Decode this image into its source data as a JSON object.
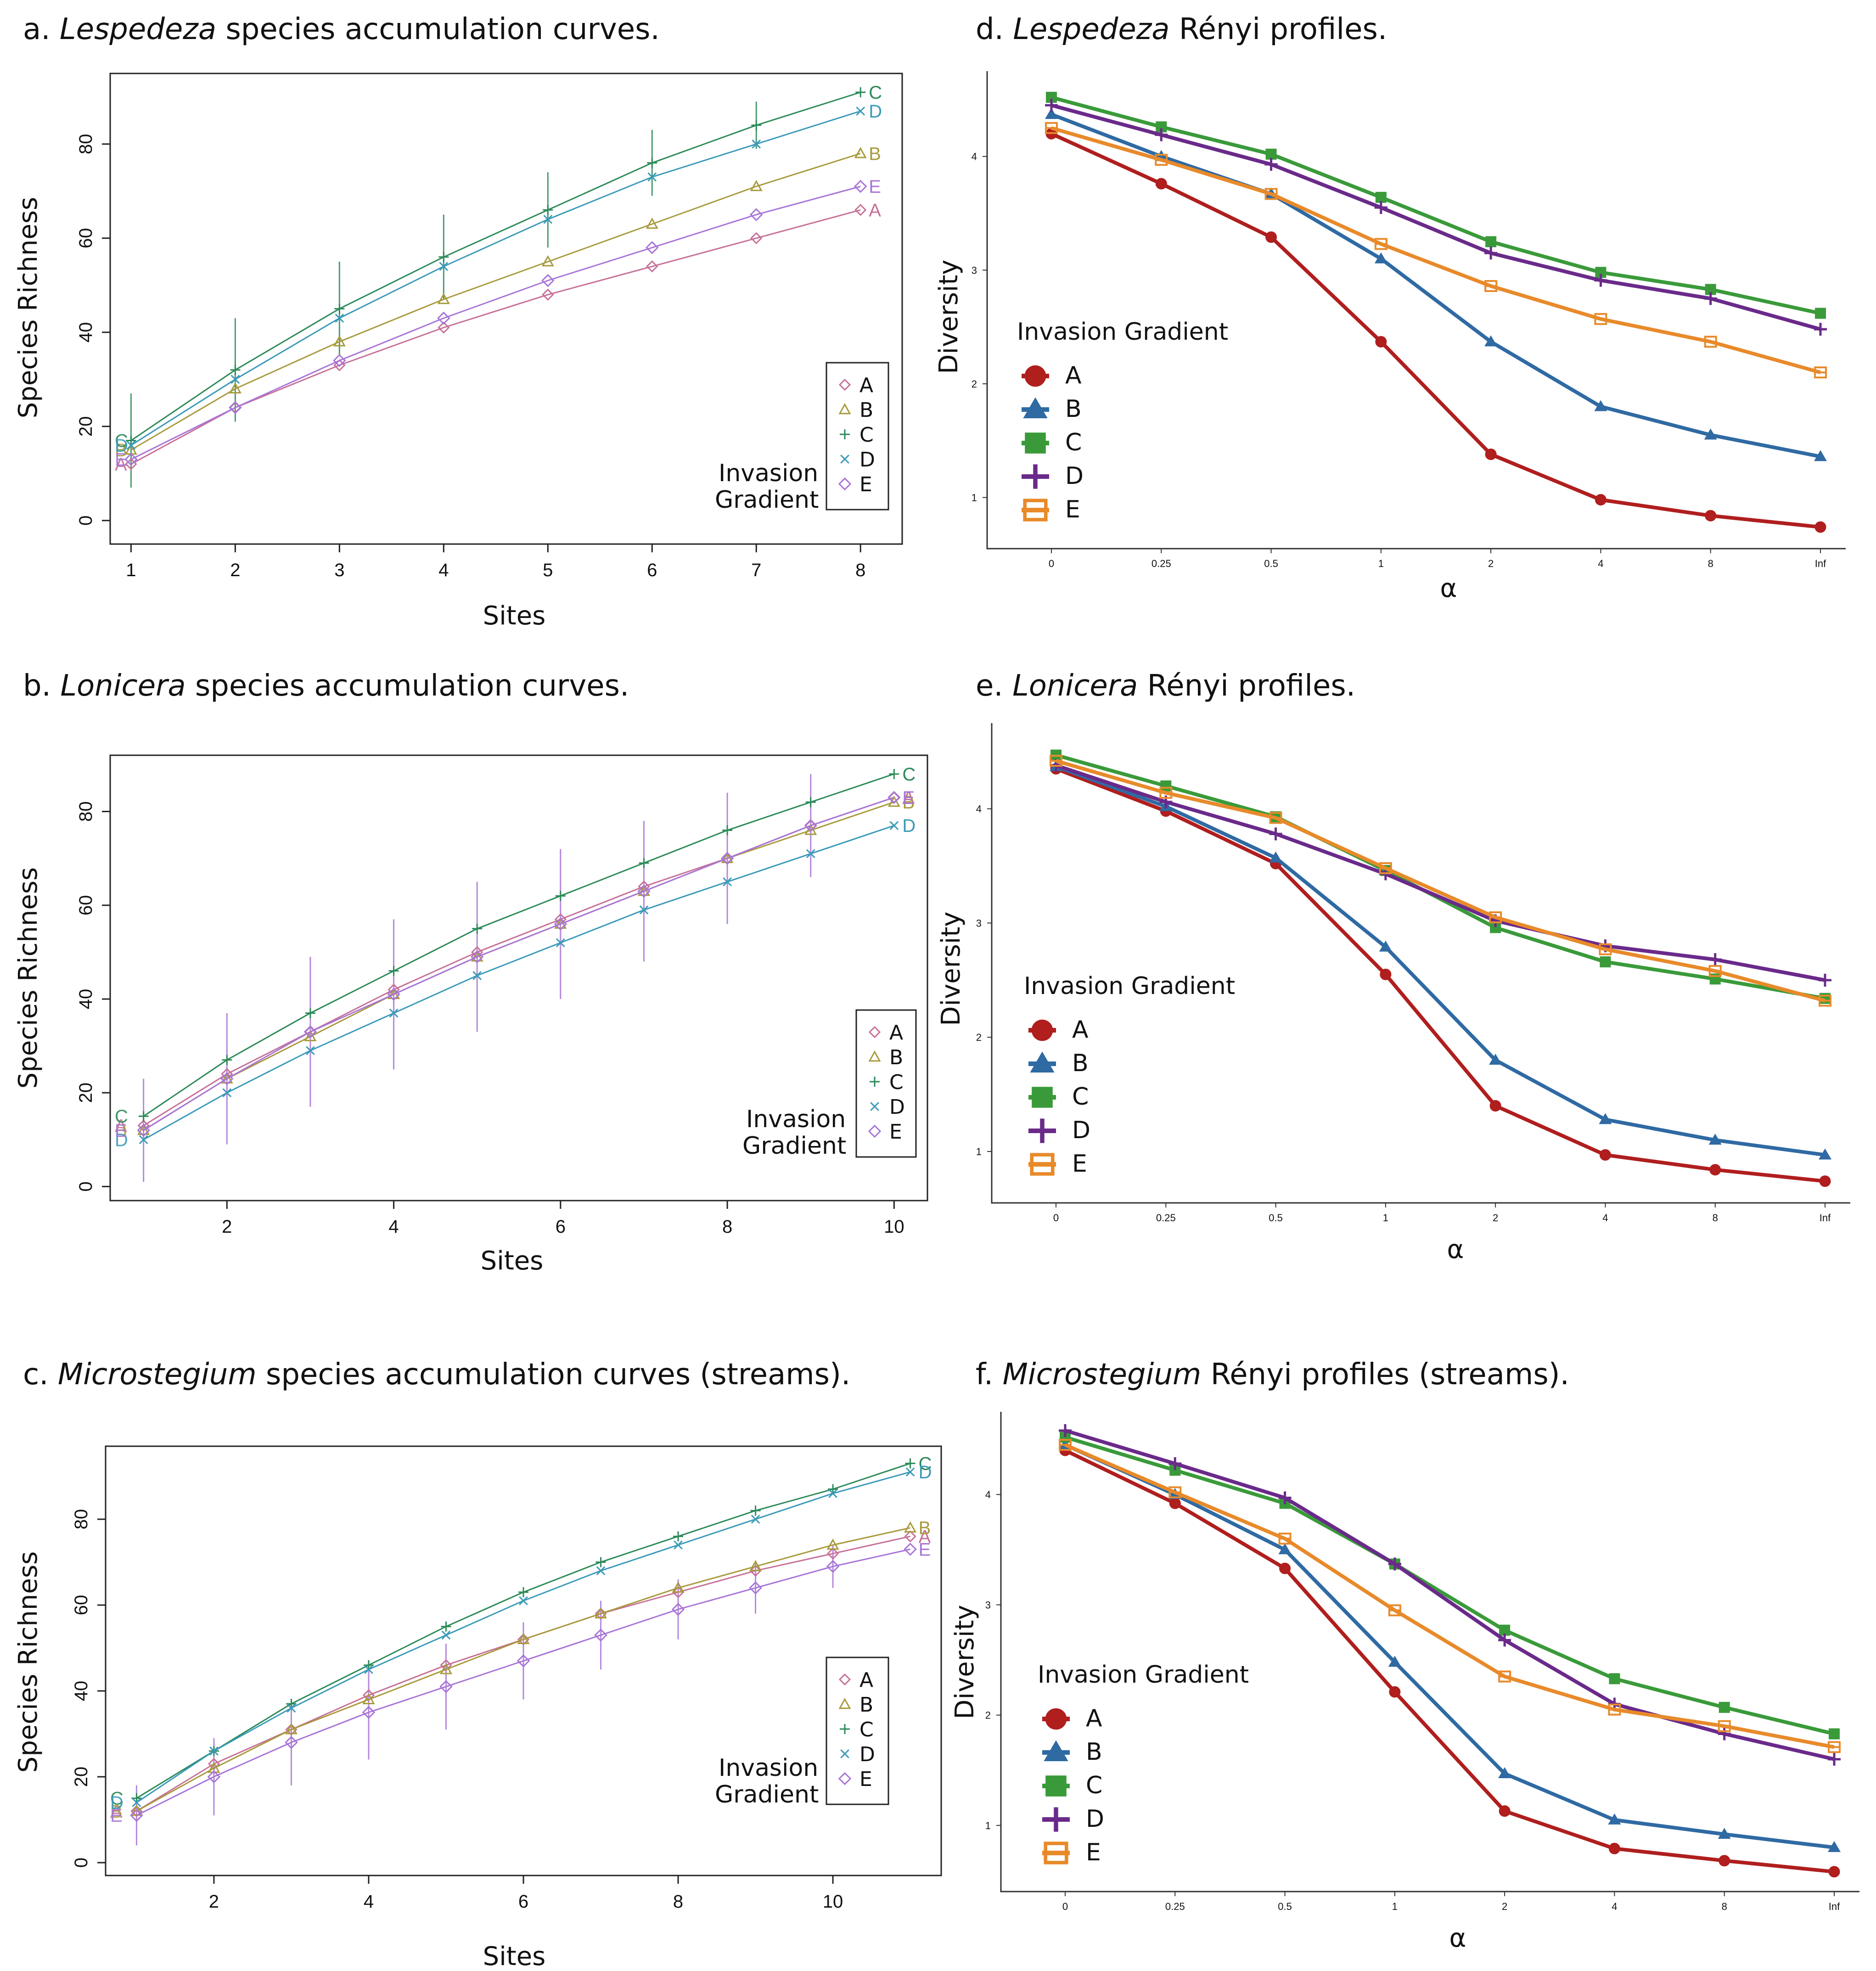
{
  "figure": {
    "colors": {
      "acc": {
        "A": "#c77098",
        "B": "#a89a3c",
        "C": "#2c8a58",
        "D": "#3a9ab8",
        "E": "#a874d8"
      },
      "renyi": {
        "A": "#b01e1e",
        "B": "#2f6aa3",
        "C": "#3a9a3a",
        "D": "#6a2a8a",
        "E": "#e88a2a"
      }
    }
  },
  "chart_data": [
    {
      "id": "a",
      "type": "line",
      "kind": "accumulation",
      "label": "a.",
      "title_italic": "Lespedeza",
      "title_rest": " species accumulation curves.",
      "xlabel": "Sites",
      "ylabel": "Species Richness",
      "x": [
        1,
        2,
        3,
        4,
        5,
        6,
        7,
        8
      ],
      "xlim": [
        0.8,
        8.4
      ],
      "ylim": [
        -5,
        95
      ],
      "xticks": [
        1,
        2,
        3,
        4,
        5,
        6,
        7,
        8
      ],
      "yticks": [
        0,
        20,
        40,
        60,
        80
      ],
      "legend_title": [
        "Invasion",
        "Gradient"
      ],
      "legend_position": "bottom-right",
      "series": [
        {
          "name": "A",
          "values": [
            12,
            24,
            33,
            41,
            48,
            54,
            60,
            66
          ]
        },
        {
          "name": "B",
          "values": [
            15,
            28,
            38,
            47,
            55,
            63,
            71,
            78
          ]
        },
        {
          "name": "C",
          "values": [
            17,
            32,
            45,
            56,
            66,
            76,
            84,
            91
          ]
        },
        {
          "name": "D",
          "values": [
            16,
            30,
            43,
            54,
            64,
            73,
            80,
            87
          ]
        },
        {
          "name": "E",
          "values": [
            13,
            24,
            34,
            43,
            51,
            58,
            65,
            71
          ]
        }
      ],
      "error_series": "C",
      "errors": [
        10,
        11,
        10,
        9,
        8,
        7,
        5,
        0
      ]
    },
    {
      "id": "b",
      "type": "line",
      "kind": "accumulation",
      "label": "b.",
      "title_italic": "Lonicera",
      "title_rest": " species accumulation curves.",
      "xlabel": "Sites",
      "ylabel": "Species Richness",
      "x": [
        1,
        2,
        3,
        4,
        5,
        6,
        7,
        8,
        9,
        10
      ],
      "xlim": [
        0.6,
        10.4
      ],
      "ylim": [
        -3,
        92
      ],
      "xticks": [
        2,
        4,
        6,
        8,
        10
      ],
      "yticks": [
        0,
        20,
        40,
        60,
        80
      ],
      "legend_title": [
        "Invasion",
        "Gradient"
      ],
      "legend_position": "bottom-right",
      "series": [
        {
          "name": "A",
          "values": [
            13,
            24,
            33,
            42,
            50,
            57,
            64,
            70,
            77,
            83
          ]
        },
        {
          "name": "B",
          "values": [
            12,
            23,
            32,
            41,
            49,
            56,
            63,
            70,
            76,
            82
          ]
        },
        {
          "name": "C",
          "values": [
            15,
            27,
            37,
            46,
            55,
            62,
            69,
            76,
            82,
            88
          ]
        },
        {
          "name": "D",
          "values": [
            10,
            20,
            29,
            37,
            45,
            52,
            59,
            65,
            71,
            77
          ]
        },
        {
          "name": "E",
          "values": [
            12,
            23,
            33,
            41,
            49,
            56,
            63,
            70,
            77,
            83
          ]
        }
      ],
      "error_series": "E",
      "errors": [
        11,
        14,
        16,
        16,
        16,
        16,
        15,
        14,
        11,
        0
      ]
    },
    {
      "id": "c",
      "type": "line",
      "kind": "accumulation",
      "label": "c.",
      "title_italic": "Microstegium",
      "title_rest": " species accumulation curves (streams).",
      "xlabel": "Sites",
      "ylabel": "Species Richness",
      "x": [
        1,
        2,
        3,
        4,
        5,
        6,
        7,
        8,
        9,
        10,
        11
      ],
      "xlim": [
        0.6,
        11.4
      ],
      "ylim": [
        -3,
        97
      ],
      "xticks": [
        2,
        4,
        6,
        8,
        10
      ],
      "yticks": [
        0,
        20,
        40,
        60,
        80
      ],
      "legend_title": [
        "Invasion",
        "Gradient"
      ],
      "legend_position": "bottom-right",
      "series": [
        {
          "name": "A",
          "values": [
            12,
            23,
            31,
            39,
            46,
            52,
            58,
            63,
            68,
            72,
            76
          ]
        },
        {
          "name": "B",
          "values": [
            12,
            22,
            31,
            38,
            45,
            52,
            58,
            64,
            69,
            74,
            78
          ]
        },
        {
          "name": "C",
          "values": [
            15,
            26,
            37,
            46,
            55,
            63,
            70,
            76,
            82,
            87,
            93
          ]
        },
        {
          "name": "D",
          "values": [
            14,
            26,
            36,
            45,
            53,
            61,
            68,
            74,
            80,
            86,
            91
          ]
        },
        {
          "name": "E",
          "values": [
            11,
            20,
            28,
            35,
            41,
            47,
            53,
            59,
            64,
            69,
            73
          ]
        }
      ],
      "error_series": "E",
      "errors": [
        7,
        9,
        10,
        11,
        10,
        9,
        8,
        7,
        6,
        5,
        0
      ]
    },
    {
      "id": "d",
      "type": "line",
      "kind": "renyi",
      "label": "d.",
      "title_italic": "Lespedeza",
      "title_rest": " Rényi profiles.",
      "xlabel": "α",
      "ylabel": "Diversity",
      "categories": [
        "0",
        "0.25",
        "0.5",
        "1",
        "2",
        "4",
        "8",
        "Inf"
      ],
      "ylim": [
        0.55,
        4.75
      ],
      "yticks": [
        1,
        2,
        3,
        4
      ],
      "legend_title": "Invasion Gradient",
      "legend_position": "middle-left",
      "series": [
        {
          "name": "A",
          "values": [
            4.2,
            3.76,
            3.29,
            2.37,
            1.38,
            0.98,
            0.84,
            0.74
          ]
        },
        {
          "name": "B",
          "values": [
            4.37,
            4.0,
            3.67,
            3.1,
            2.37,
            1.8,
            1.55,
            1.36
          ]
        },
        {
          "name": "C",
          "values": [
            4.52,
            4.26,
            4.02,
            3.64,
            3.25,
            2.98,
            2.83,
            2.62
          ]
        },
        {
          "name": "D",
          "values": [
            4.45,
            4.19,
            3.93,
            3.55,
            3.15,
            2.91,
            2.75,
            2.48
          ]
        },
        {
          "name": "E",
          "values": [
            4.25,
            3.97,
            3.67,
            3.23,
            2.86,
            2.57,
            2.37,
            2.1
          ]
        }
      ]
    },
    {
      "id": "e",
      "type": "line",
      "kind": "renyi",
      "label": "e.",
      "title_italic": "Lonicera",
      "title_rest": " Rényi profiles.",
      "xlabel": "α",
      "ylabel": "Diversity",
      "categories": [
        "0",
        "0.25",
        "0.5",
        "1",
        "2",
        "4",
        "8",
        "Inf"
      ],
      "ylim": [
        0.55,
        4.75
      ],
      "yticks": [
        1,
        2,
        3,
        4
      ],
      "legend_title": "Invasion Gradient",
      "legend_position": "middle-left",
      "series": [
        {
          "name": "A",
          "values": [
            4.35,
            3.98,
            3.52,
            2.55,
            1.4,
            0.97,
            0.84,
            0.74
          ]
        },
        {
          "name": "B",
          "values": [
            4.37,
            4.02,
            3.57,
            2.79,
            1.8,
            1.28,
            1.1,
            0.97
          ]
        },
        {
          "name": "C",
          "values": [
            4.47,
            4.2,
            3.93,
            3.46,
            2.96,
            2.66,
            2.51,
            2.34
          ]
        },
        {
          "name": "D",
          "values": [
            4.38,
            4.06,
            3.78,
            3.43,
            3.02,
            2.8,
            2.68,
            2.5
          ]
        },
        {
          "name": "E",
          "values": [
            4.42,
            4.14,
            3.92,
            3.48,
            3.05,
            2.77,
            2.58,
            2.32
          ]
        }
      ]
    },
    {
      "id": "f",
      "type": "line",
      "kind": "renyi",
      "label": "f.",
      "title_italic": "Microstegium",
      "title_rest": " Rényi profiles (streams).",
      "xlabel": "α",
      "ylabel": "Diversity",
      "categories": [
        "0",
        "0.25",
        "0.5",
        "1",
        "2",
        "4",
        "8",
        "Inf"
      ],
      "ylim": [
        0.4,
        4.75
      ],
      "yticks": [
        1,
        2,
        3,
        4
      ],
      "legend_title": "Invasion Gradient",
      "legend_position": "middle-left",
      "series": [
        {
          "name": "A",
          "values": [
            4.4,
            3.92,
            3.33,
            2.21,
            1.13,
            0.79,
            0.68,
            0.58
          ]
        },
        {
          "name": "B",
          "values": [
            4.45,
            4.0,
            3.5,
            2.48,
            1.47,
            1.05,
            0.92,
            0.8
          ]
        },
        {
          "name": "C",
          "values": [
            4.52,
            4.22,
            3.92,
            3.37,
            2.77,
            2.33,
            2.07,
            1.83
          ]
        },
        {
          "name": "D",
          "values": [
            4.58,
            4.28,
            3.97,
            3.37,
            2.68,
            2.1,
            1.83,
            1.6
          ]
        },
        {
          "name": "E",
          "values": [
            4.45,
            4.02,
            3.6,
            2.95,
            2.35,
            2.05,
            1.9,
            1.71
          ]
        }
      ]
    }
  ]
}
